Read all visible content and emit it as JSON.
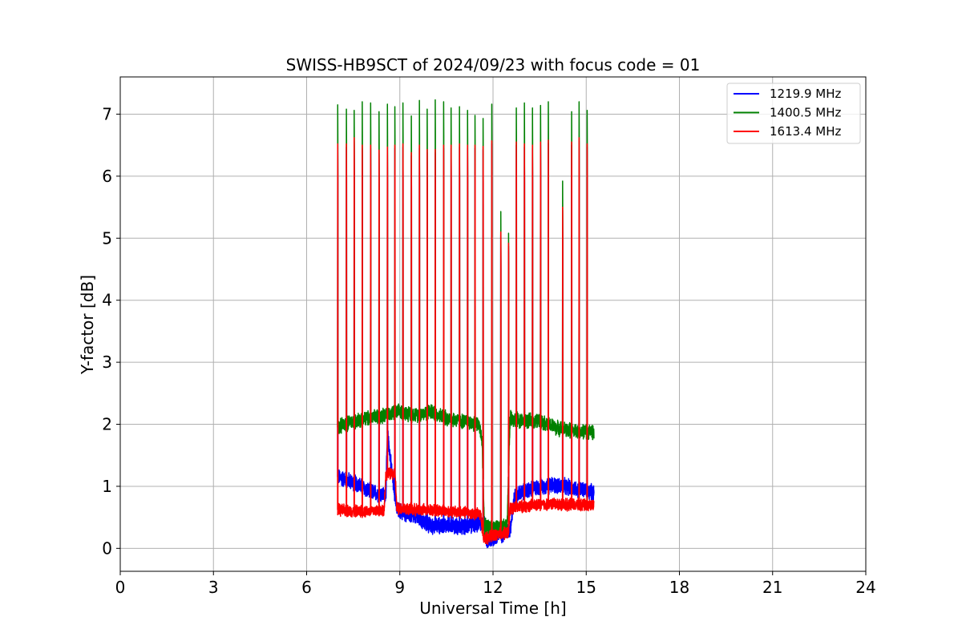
{
  "chart_data": {
    "type": "line",
    "title": "SWISS-HB9SCT of 2024/09/23 with focus code = 01",
    "xlabel": "Universal Time [h]",
    "ylabel": "Y-factor [dB]",
    "xlim": [
      0,
      24
    ],
    "ylim": [
      -0.37,
      7.6
    ],
    "xticks": [
      0,
      3,
      6,
      9,
      12,
      15,
      18,
      21,
      24
    ],
    "xtick_labels": [
      "0",
      "3",
      "6",
      "9",
      "12",
      "15",
      "18",
      "21",
      "24"
    ],
    "yticks": [
      0,
      1,
      2,
      3,
      4,
      5,
      6,
      7
    ],
    "ytick_labels": [
      "0",
      "1",
      "2",
      "3",
      "4",
      "5",
      "6",
      "7"
    ],
    "grid": true,
    "legend_position": "top-right",
    "peaks": [
      {
        "t": 7.0,
        "g": 7.15,
        "r": 6.52
      },
      {
        "t": 7.28,
        "g": 7.08,
        "r": 6.52
      },
      {
        "t": 7.53,
        "g": 7.06,
        "r": 6.62
      },
      {
        "t": 7.79,
        "g": 7.2,
        "r": 6.5
      },
      {
        "t": 8.06,
        "g": 7.18,
        "r": 6.5
      },
      {
        "t": 8.33,
        "g": 7.04,
        "r": 6.42
      },
      {
        "t": 8.6,
        "g": 7.16,
        "r": 6.47
      },
      {
        "t": 8.84,
        "g": 7.12,
        "r": 6.5
      },
      {
        "t": 9.1,
        "g": 7.18,
        "r": 6.52
      },
      {
        "t": 9.37,
        "g": 6.97,
        "r": 6.38
      },
      {
        "t": 9.63,
        "g": 7.22,
        "r": 6.5
      },
      {
        "t": 9.88,
        "g": 7.08,
        "r": 6.43
      },
      {
        "t": 10.14,
        "g": 7.23,
        "r": 6.43
      },
      {
        "t": 10.41,
        "g": 7.2,
        "r": 6.5
      },
      {
        "t": 10.65,
        "g": 7.1,
        "r": 6.5
      },
      {
        "t": 10.92,
        "g": 7.12,
        "r": 6.52
      },
      {
        "t": 11.18,
        "g": 7.06,
        "r": 6.5
      },
      {
        "t": 11.42,
        "g": 6.98,
        "r": 6.5
      },
      {
        "t": 11.68,
        "g": 6.93,
        "r": 6.48
      },
      {
        "t": 11.96,
        "g": 7.16,
        "r": 6.57
      },
      {
        "t": 12.25,
        "g": 5.43,
        "r": 5.1
      },
      {
        "t": 12.5,
        "g": 5.08,
        "r": 4.92
      },
      {
        "t": 12.75,
        "g": 7.1,
        "r": 6.55
      },
      {
        "t": 13.01,
        "g": 7.18,
        "r": 6.52
      },
      {
        "t": 13.27,
        "g": 7.1,
        "r": 6.5
      },
      {
        "t": 13.53,
        "g": 7.14,
        "r": 6.55
      },
      {
        "t": 13.78,
        "g": 7.2,
        "r": 6.58
      },
      {
        "t": 14.24,
        "g": 5.92,
        "r": 5.5
      },
      {
        "t": 14.53,
        "g": 7.04,
        "r": 6.55
      },
      {
        "t": 14.77,
        "g": 7.2,
        "r": 6.62
      },
      {
        "t": 15.03,
        "g": 7.06,
        "r": 6.52
      }
    ],
    "series": [
      {
        "name": "1219.9 MHz",
        "color": "#0000ff",
        "baseline": [
          [
            7.0,
            1.15
          ],
          [
            7.6,
            1.05
          ],
          [
            8.0,
            0.92
          ],
          [
            8.55,
            0.85
          ],
          [
            8.6,
            1.85
          ],
          [
            8.9,
            0.62
          ],
          [
            9.5,
            0.5
          ],
          [
            10.0,
            0.36
          ],
          [
            10.6,
            0.38
          ],
          [
            11.0,
            0.34
          ],
          [
            11.5,
            0.4
          ],
          [
            11.72,
            0.42
          ],
          [
            11.8,
            0.1
          ],
          [
            12.1,
            0.18
          ],
          [
            12.55,
            0.3
          ],
          [
            12.7,
            0.85
          ],
          [
            13.2,
            0.95
          ],
          [
            13.6,
            1.0
          ],
          [
            14.0,
            1.02
          ],
          [
            14.5,
            0.98
          ],
          [
            15.25,
            0.9
          ]
        ]
      },
      {
        "name": "1400.5 MHz",
        "color": "#008000",
        "baseline": [
          [
            7.0,
            1.95
          ],
          [
            7.5,
            2.05
          ],
          [
            8.0,
            2.1
          ],
          [
            8.5,
            2.15
          ],
          [
            9.0,
            2.2
          ],
          [
            9.5,
            2.15
          ],
          [
            10.0,
            2.2
          ],
          [
            10.5,
            2.1
          ],
          [
            11.0,
            2.05
          ],
          [
            11.55,
            2.0
          ],
          [
            11.65,
            1.7
          ],
          [
            11.72,
            0.35
          ],
          [
            12.0,
            0.33
          ],
          [
            12.45,
            0.35
          ],
          [
            12.55,
            2.1
          ],
          [
            13.0,
            2.05
          ],
          [
            13.5,
            2.05
          ],
          [
            14.0,
            1.95
          ],
          [
            14.5,
            1.9
          ],
          [
            15.25,
            1.88
          ]
        ]
      },
      {
        "name": "1613.4 MHz",
        "color": "#ff0000",
        "baseline": [
          [
            7.0,
            0.62
          ],
          [
            7.5,
            0.6
          ],
          [
            8.0,
            0.6
          ],
          [
            8.5,
            0.62
          ],
          [
            8.55,
            1.2
          ],
          [
            8.85,
            1.2
          ],
          [
            8.9,
            0.65
          ],
          [
            9.5,
            0.62
          ],
          [
            10.0,
            0.62
          ],
          [
            10.5,
            0.6
          ],
          [
            11.0,
            0.58
          ],
          [
            11.6,
            0.55
          ],
          [
            11.7,
            0.15
          ],
          [
            12.1,
            0.22
          ],
          [
            12.5,
            0.25
          ],
          [
            12.55,
            0.65
          ],
          [
            13.0,
            0.68
          ],
          [
            13.5,
            0.7
          ],
          [
            14.0,
            0.72
          ],
          [
            14.5,
            0.7
          ],
          [
            15.25,
            0.7
          ]
        ]
      }
    ]
  }
}
